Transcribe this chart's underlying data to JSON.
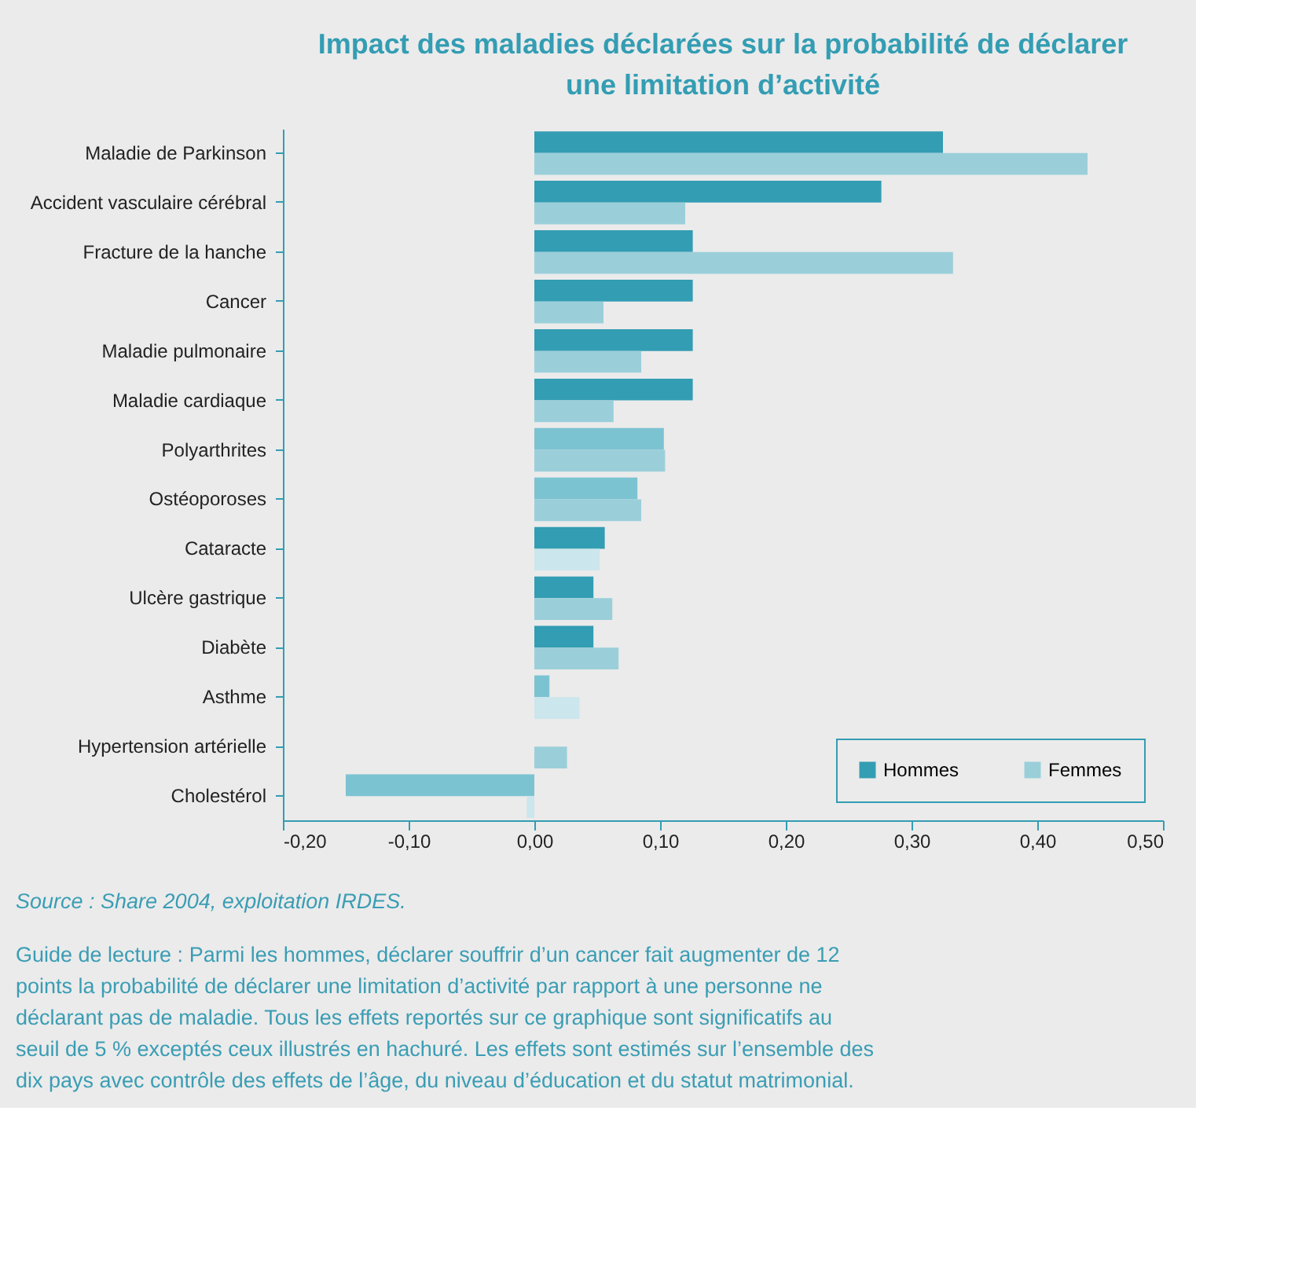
{
  "chart_data": {
    "type": "bar",
    "orientation": "horizontal",
    "title": "Impact des maladies déclarées sur la probabilité de déclarer une limitation d’activité",
    "categories": [
      "Maladie de Parkinson",
      "Accident vasculaire cérébral",
      "Fracture de la hanche",
      "Cancer",
      "Maladie pulmonaire",
      "Maladie cardiaque",
      "Polyarthrites",
      "Ostéoporoses",
      "Cataracte",
      "Ulcère gastrique",
      "Diabète",
      "Asthme",
      "Hypertension artérielle",
      "Cholestérol"
    ],
    "series": [
      {
        "name": "Hommes",
        "color": "#339db3",
        "values": [
          0.325,
          0.276,
          0.126,
          0.126,
          0.126,
          0.126,
          0.103,
          0.082,
          0.056,
          0.047,
          0.047,
          0.012,
          null,
          -0.15
        ],
        "colors": [
          "#339db3",
          "#339db3",
          "#339db3",
          "#339db3",
          "#339db3",
          "#339db3",
          "#7cc3d2",
          "#7cc3d2",
          "#339db3",
          "#339db3",
          "#339db3",
          "#7cc3d2",
          "#339db3",
          "#7cc3d2"
        ]
      },
      {
        "name": "Femmes",
        "color": "#9acfda",
        "values": [
          0.44,
          0.12,
          0.333,
          0.055,
          0.085,
          0.063,
          0.104,
          0.085,
          0.052,
          0.062,
          0.067,
          0.036,
          0.026,
          -0.006
        ],
        "colors": [
          "#9acfda",
          "#9acfda",
          "#9acfda",
          "#9acfda",
          "#9acfda",
          "#9acfda",
          "#9acfda",
          "#9acfda",
          "#cbe6ec",
          "#9acfda",
          "#9acfda",
          "#cbe6ec",
          "#9acfda",
          "#cbe6ec"
        ]
      }
    ],
    "xlim": [
      -0.2,
      0.5
    ],
    "xticks": [
      {
        "value": -0.2,
        "label": "-0,20"
      },
      {
        "value": -0.1,
        "label": "-0,10"
      },
      {
        "value": 0,
        "label": "0,00"
      },
      {
        "value": 0.1,
        "label": "0,10"
      },
      {
        "value": 0.2,
        "label": "0,20"
      },
      {
        "value": 0.3,
        "label": "0,30"
      },
      {
        "value": 0.4,
        "label": "0,40"
      },
      {
        "value": 0.5,
        "label": "0,50"
      }
    ],
    "grid": false,
    "legend": "bottom right",
    "annotations": [
      "Source : Share 2004, exploitation IRDES.",
      "Guide de lecture : Parmi les hommes, déclarer souffrir d’un cancer fait augmenter de 12 points la probabilité de déclarer une limitation d’activité par rapport à une personne ne déclarant pas de maladie. Tous les effets reportés sur ce graphique sont significatifs au seuil de 5 % exceptés ceux illustrés en hachuré. Les effets sont estimés sur l’ensemble des dix pays avec contrôle des effets de l’âge, du niveau d’éducation et du statut matrimonial."
    ]
  }
}
